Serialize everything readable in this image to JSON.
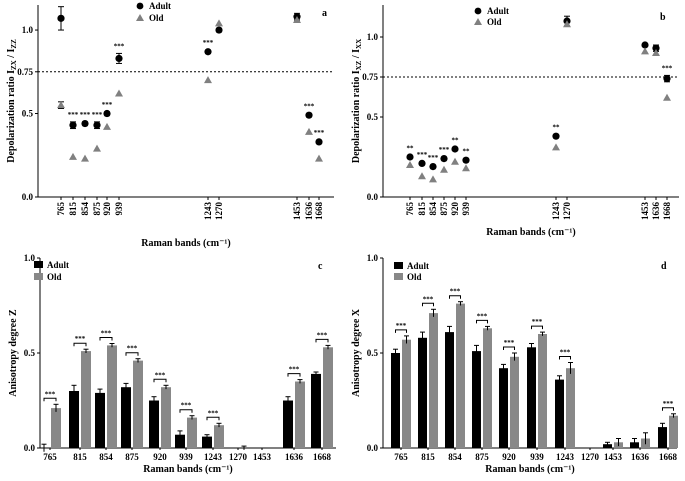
{
  "chart_data": [
    {
      "id": "a",
      "type": "scatter",
      "panel_label": "a",
      "ylabel_main": "Depolarization ratio I",
      "ylabel_sub1": "ZX",
      "ylabel_sep": " / I",
      "ylabel_sub2": "ZZ",
      "xlabel": "Raman bands (cm⁻¹)",
      "ylim": [
        0,
        1.15
      ],
      "yticks": [
        {
          "v": 0.0,
          "label": "0.0"
        },
        {
          "v": 0.5,
          "label": "0.5"
        },
        {
          "v": 0.75,
          "label": "0.75"
        },
        {
          "v": 1.0,
          "label": "1.0"
        }
      ],
      "reference_line": 0.75,
      "categories": [
        "765",
        "815",
        "854",
        "875",
        "920",
        "939",
        "1243",
        "1270",
        "1453",
        "1636",
        "1668"
      ],
      "x": [
        765,
        815,
        854,
        875,
        920,
        939,
        1243,
        1270,
        1453,
        1636,
        1668
      ],
      "series": [
        {
          "name": "Adult",
          "marker": "circle",
          "values": [
            1.07,
            0.43,
            0.44,
            0.43,
            0.5,
            0.83,
            0.87,
            1.0,
            1.08,
            0.49,
            0.33
          ],
          "err": [
            0.07,
            0.02,
            0.01,
            0.02,
            0.01,
            0.03,
            0.01,
            0.01,
            0.02,
            0.01,
            0.01
          ]
        },
        {
          "name": "Old",
          "marker": "triangle",
          "values": [
            0.55,
            0.24,
            0.23,
            0.29,
            0.42,
            0.62,
            0.7,
            1.04,
            1.06,
            0.39,
            0.23
          ],
          "err": [
            0.02,
            0,
            0,
            0,
            0,
            0,
            0,
            0,
            0,
            0,
            0
          ]
        }
      ],
      "significance": [
        {
          "x": 765,
          "label": "***"
        },
        {
          "x": 815,
          "label": "***"
        },
        {
          "x": 854,
          "label": "***"
        },
        {
          "x": 875,
          "label": "***"
        },
        {
          "x": 920,
          "label": "***"
        },
        {
          "x": 939,
          "label": "***"
        },
        {
          "x": 1243,
          "label": "***"
        },
        {
          "x": 1636,
          "label": "***"
        },
        {
          "x": 1668,
          "label": "***"
        }
      ]
    },
    {
      "id": "b",
      "type": "scatter",
      "panel_label": "b",
      "ylabel_main": "Depolarization ratio I",
      "ylabel_sub1": "XZ",
      "ylabel_sep": " / I",
      "ylabel_sub2": "XX",
      "xlabel": "Raman bands (cm⁻¹)",
      "ylim": [
        0,
        1.2
      ],
      "yticks": [
        {
          "v": 0.0,
          "label": "0.0"
        },
        {
          "v": 0.5,
          "label": "0.5"
        },
        {
          "v": 0.75,
          "label": "0.75"
        },
        {
          "v": 1.0,
          "label": "1.0"
        }
      ],
      "reference_line": 0.75,
      "categories": [
        "765",
        "815",
        "854",
        "875",
        "920",
        "939",
        "1243",
        "1270",
        "1453",
        "1636",
        "1668"
      ],
      "x": [
        765,
        815,
        854,
        875,
        920,
        939,
        1243,
        1270,
        1453,
        1636,
        1668
      ],
      "series": [
        {
          "name": "Adult",
          "marker": "circle",
          "values": [
            0.25,
            0.21,
            0.19,
            0.24,
            0.3,
            0.23,
            0.38,
            1.1,
            0.95,
            0.93,
            0.74
          ],
          "err": [
            0.01,
            0.01,
            0.01,
            0.01,
            0.01,
            0.01,
            0.01,
            0.03,
            0.01,
            0.02,
            0.02
          ]
        },
        {
          "name": "Old",
          "marker": "triangle",
          "values": [
            0.2,
            0.13,
            0.11,
            0.17,
            0.22,
            0.18,
            0.31,
            1.08,
            0.91,
            0.9,
            0.62
          ],
          "err": [
            0,
            0,
            0,
            0,
            0,
            0,
            0,
            0,
            0,
            0,
            0
          ]
        }
      ],
      "significance": [
        {
          "x": 765,
          "label": "**"
        },
        {
          "x": 815,
          "label": "***"
        },
        {
          "x": 854,
          "label": "***"
        },
        {
          "x": 875,
          "label": "***"
        },
        {
          "x": 920,
          "label": "**"
        },
        {
          "x": 939,
          "label": "**"
        },
        {
          "x": 1243,
          "label": "**"
        },
        {
          "x": 1668,
          "label": "***"
        }
      ]
    },
    {
      "id": "c",
      "type": "bar",
      "panel_label": "c",
      "ylabel": "Anisotropy degree Z",
      "xlabel": "Raman bands (cm⁻¹)",
      "ylim": [
        0,
        1.0
      ],
      "yticks": [
        {
          "v": 0.0,
          "label": "0.0"
        },
        {
          "v": 0.5,
          "label": "0.5"
        },
        {
          "v": 1.0,
          "label": "1.0"
        }
      ],
      "categories": [
        "765",
        "815",
        "854",
        "875",
        "920",
        "939",
        "1243",
        "1270",
        "1453",
        "1636",
        "1668"
      ],
      "series": [
        {
          "name": "Adult",
          "color": "#000000",
          "values": [
            0.0,
            0.3,
            0.29,
            0.32,
            0.25,
            0.07,
            0.06,
            0.0,
            0.0,
            0.25,
            0.39
          ],
          "err": [
            0.02,
            0.03,
            0.02,
            0.02,
            0.02,
            0.02,
            0.01,
            0.0,
            0.0,
            0.02,
            0.01
          ]
        },
        {
          "name": "Old",
          "color": "#888888",
          "values": [
            0.21,
            0.51,
            0.54,
            0.46,
            0.32,
            0.16,
            0.12,
            0.0,
            0.0,
            0.35,
            0.53
          ],
          "err": [
            0.02,
            0.01,
            0.01,
            0.01,
            0.01,
            0.01,
            0.01,
            0.01,
            0.0,
            0.01,
            0.01
          ]
        }
      ],
      "significance": [
        {
          "category": "765",
          "label": "***"
        },
        {
          "category": "815",
          "label": "***"
        },
        {
          "category": "854",
          "label": "***"
        },
        {
          "category": "875",
          "label": "***"
        },
        {
          "category": "920",
          "label": "***"
        },
        {
          "category": "939",
          "label": "***"
        },
        {
          "category": "1243",
          "label": "***"
        },
        {
          "category": "1636",
          "label": "***"
        },
        {
          "category": "1668",
          "label": "***"
        }
      ]
    },
    {
      "id": "d",
      "type": "bar",
      "panel_label": "d",
      "ylabel": "Anisotropy degree X",
      "xlabel": "Raman bands (cm⁻¹)",
      "ylim": [
        0,
        1.0
      ],
      "yticks": [
        {
          "v": 0.0,
          "label": "0.0"
        },
        {
          "v": 0.5,
          "label": "0.5"
        },
        {
          "v": 1.0,
          "label": "1.0"
        }
      ],
      "categories": [
        "765",
        "815",
        "854",
        "875",
        "920",
        "939",
        "1243",
        "1270",
        "1453",
        "1636",
        "1668"
      ],
      "series": [
        {
          "name": "Adult",
          "color": "#000000",
          "values": [
            0.5,
            0.58,
            0.61,
            0.51,
            0.42,
            0.53,
            0.36,
            0.0,
            0.02,
            0.03,
            0.11
          ],
          "err": [
            0.02,
            0.03,
            0.03,
            0.03,
            0.02,
            0.02,
            0.02,
            0.0,
            0.01,
            0.02,
            0.02
          ]
        },
        {
          "name": "Old",
          "color": "#888888",
          "values": [
            0.57,
            0.71,
            0.76,
            0.63,
            0.48,
            0.6,
            0.42,
            0.0,
            0.03,
            0.05,
            0.17
          ],
          "err": [
            0.02,
            0.02,
            0.01,
            0.01,
            0.02,
            0.01,
            0.03,
            0.0,
            0.02,
            0.03,
            0.01
          ]
        }
      ],
      "significance": [
        {
          "category": "765",
          "label": "***"
        },
        {
          "category": "815",
          "label": "***"
        },
        {
          "category": "854",
          "label": "***"
        },
        {
          "category": "875",
          "label": "***"
        },
        {
          "category": "920",
          "label": "***"
        },
        {
          "category": "939",
          "label": "***"
        },
        {
          "category": "1243",
          "label": "***"
        },
        {
          "category": "1668",
          "label": "***"
        }
      ]
    }
  ]
}
